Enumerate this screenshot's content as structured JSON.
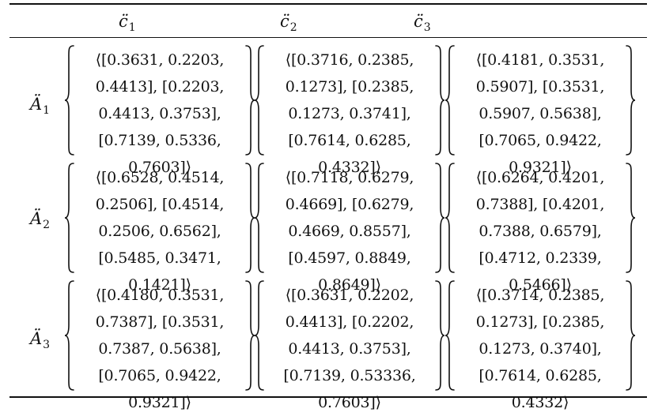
{
  "table": {
    "columns": [
      {
        "symbol": "c̈",
        "sub": "1"
      },
      {
        "symbol": "c̈",
        "sub": "2"
      },
      {
        "symbol": "c̈",
        "sub": "3"
      }
    ],
    "rows": [
      {
        "symbol": "Ä",
        "sub": "1",
        "cells": [
          [
            "⟨[0.3631, 0.2203,",
            "0.4413], [0.2203,",
            "0.4413, 0.3753],",
            "[0.7139, 0.5336,",
            "0.7603]⟩"
          ],
          [
            "⟨[0.3716, 0.2385,",
            "0.1273], [0.2385,",
            "0.1273, 0.3741],",
            "[0.7614, 0.6285,",
            "0.4332]⟩"
          ],
          [
            "⟨[0.4181, 0.3531,",
            "0.5907], [0.3531,",
            "0.5907, 0.5638],",
            "[0.7065, 0.9422,",
            "0.9321]⟩"
          ]
        ]
      },
      {
        "symbol": "Ä",
        "sub": "2",
        "cells": [
          [
            "⟨[0.6528, 0.4514,",
            "0.2506], [0.4514,",
            "0.2506, 0.6562],",
            "[0.5485, 0.3471,",
            "0.1421]⟩"
          ],
          [
            "⟨[0.7118, 0.6279,",
            "0.4669], [0.6279,",
            "0.4669, 0.8557],",
            "[0.4597, 0.8849,",
            "0.8649]⟩"
          ],
          [
            "⟨[0.6264, 0.4201,",
            "0.7388], [0.4201,",
            "0.7388, 0.6579],",
            "[0.4712, 0.2339,",
            "0.5466]⟩"
          ]
        ]
      },
      {
        "symbol": "Ä",
        "sub": "3",
        "cells": [
          [
            "⟨[0.4180, 0.3531,",
            "0.7387], [0.3531,",
            "0.7387, 0.5638],",
            "[0.7065, 0.9422,",
            "0.9321]⟩"
          ],
          [
            "⟨[0.3631, 0.2202,",
            "0.4413], [0.2202,",
            "0.4413, 0.3753],",
            "[0.7139, 0.53336,",
            "0.7603]⟩"
          ],
          [
            "⟨[0.3714, 0.2385,",
            "0.1273], [0.2385,",
            "0.1273, 0.3740],",
            "[0.7614, 0.6285,",
            "0.4332⟩"
          ]
        ]
      }
    ]
  }
}
